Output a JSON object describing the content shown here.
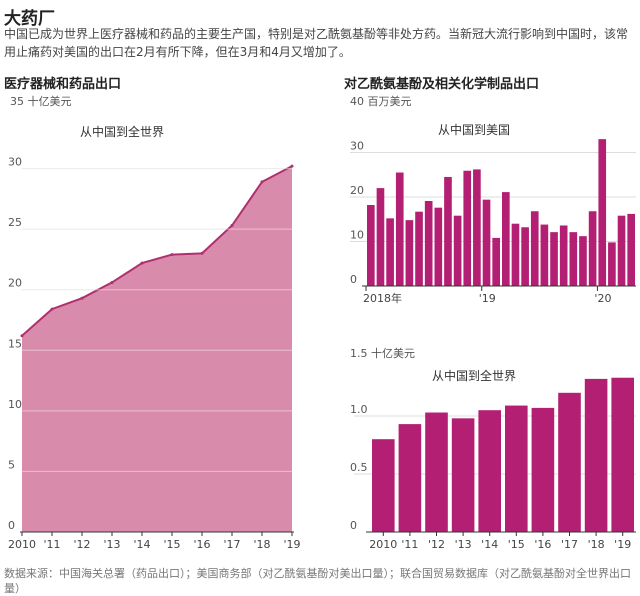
{
  "header": {
    "title": "大药厂",
    "subtitle": "中国已成为世界上医疗器械和药品的主要生产国，特别是对乙酰氨基酚等非处方药。当新冠大流行影响到中国时，该常用止痛药对美国的出口在2月有所下降，但在3月和4月又增加了。"
  },
  "panels": {
    "left_title": "医疗器械和药品出口",
    "right_title": "对乙酰氨基酚及相关化学制品出口"
  },
  "source": "数据来源：中国海关总署（药品出口）；美国商务部（对乙酰氨基酚对美出口量）；联合国贸易数据库（对乙酰氨基酚对全世界出口量）",
  "colors": {
    "area_fill": "#d98bac",
    "area_line": "#b0306f",
    "bar": "#b31f72",
    "grid": "#dddddd",
    "axis": "#333333"
  },
  "chart_data": [
    {
      "type": "area",
      "unit_label": "35 十亿美元",
      "annotation": "从中国到全世界",
      "categories": [
        "2010",
        "'11",
        "'12",
        "'13",
        "'14",
        "'15",
        "'16",
        "'17",
        "'18",
        "'19"
      ],
      "values": [
        16.2,
        18.4,
        19.3,
        20.6,
        22.2,
        22.9,
        23.0,
        25.3,
        28.9,
        30.2
      ],
      "ylim": [
        0,
        35
      ],
      "yticks": [
        0,
        5,
        10,
        15,
        20,
        25,
        30
      ],
      "grid": true
    },
    {
      "type": "bar",
      "unit_label": "40 百万美元",
      "annotation": "从中国到美国",
      "values": [
        18.2,
        22.0,
        15.2,
        25.5,
        14.8,
        16.7,
        19.1,
        17.6,
        24.5,
        15.8,
        25.9,
        26.2,
        19.4,
        10.8,
        21.1,
        14.0,
        13.2,
        16.8,
        13.8,
        12.1,
        13.6,
        12.1,
        11.2,
        16.8,
        33.0,
        9.8,
        15.8,
        16.2
      ],
      "xtick_labels": [
        {
          "index": 0,
          "label": "2018年"
        },
        {
          "index": 12,
          "label": "'19"
        },
        {
          "index": 24,
          "label": "'20"
        }
      ],
      "ylim": [
        0,
        40
      ],
      "yticks": [
        0,
        10,
        20,
        30
      ],
      "grid": true
    },
    {
      "type": "bar",
      "unit_label": "1.5 十亿美元",
      "annotation": "从中国到全世界",
      "categories": [
        "2010",
        "'11",
        "'12",
        "'13",
        "'14",
        "'15",
        "'16",
        "'17",
        "'18",
        "'19"
      ],
      "values": [
        0.8,
        0.93,
        1.03,
        0.98,
        1.05,
        1.09,
        1.07,
        1.2,
        1.32,
        1.33
      ],
      "ylim": [
        0,
        1.5
      ],
      "yticks": [
        0,
        0.5,
        1.0
      ],
      "ytick_labels": [
        "0",
        "0.5",
        "1.0"
      ],
      "grid": true
    }
  ]
}
